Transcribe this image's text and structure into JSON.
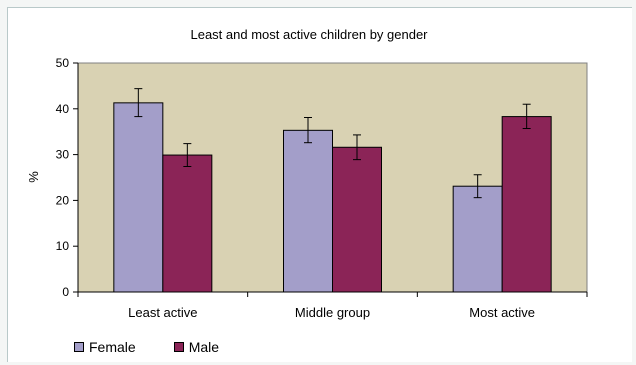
{
  "chart_data": {
    "type": "bar",
    "title": "Least and most active children by gender",
    "xlabel": "",
    "ylabel": "%",
    "ylim": [
      0,
      50
    ],
    "yticks": [
      0,
      10,
      20,
      30,
      40,
      50
    ],
    "grid": false,
    "plot_background": "#d9d2b3",
    "legend_position": "bottom-left",
    "categories": [
      "Least active",
      "Middle group",
      "Most active"
    ],
    "series": [
      {
        "name": "Female",
        "color": "#a39ec9",
        "values": [
          41.3,
          35.3,
          23.1
        ],
        "error": [
          [
            38.3,
            44.4
          ],
          [
            32.6,
            38.1
          ],
          [
            20.6,
            25.6
          ]
        ]
      },
      {
        "name": "Male",
        "color": "#8b2457",
        "values": [
          29.9,
          31.6,
          38.3
        ],
        "error": [
          [
            27.4,
            32.4
          ],
          [
            28.9,
            34.3
          ],
          [
            35.7,
            41.0
          ]
        ]
      }
    ]
  }
}
